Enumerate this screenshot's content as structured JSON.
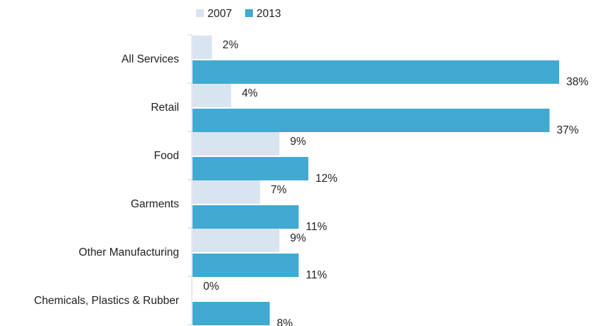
{
  "chart_data": {
    "type": "bar",
    "orientation": "horizontal",
    "categories": [
      "All Services",
      "Retail",
      "Food",
      "Garments",
      "Other Manufacturing",
      "Chemicals, Plastics & Rubber"
    ],
    "series": [
      {
        "name": "2007",
        "color": "#d9e4f1",
        "values": [
          2,
          4,
          9,
          7,
          9,
          0
        ],
        "labels": [
          "2%",
          "4%",
          "9%",
          "7%",
          "9%",
          "0%"
        ]
      },
      {
        "name": "2013",
        "color": "#41a9d2",
        "values": [
          38,
          37,
          12,
          11,
          11,
          8
        ],
        "labels": [
          "38%",
          "37%",
          "12%",
          "11%",
          "11%",
          "8%"
        ]
      }
    ],
    "title": "",
    "xlabel": "",
    "ylabel": "",
    "xlim": [
      0,
      38
    ],
    "grid": false,
    "legend": "top-left"
  }
}
